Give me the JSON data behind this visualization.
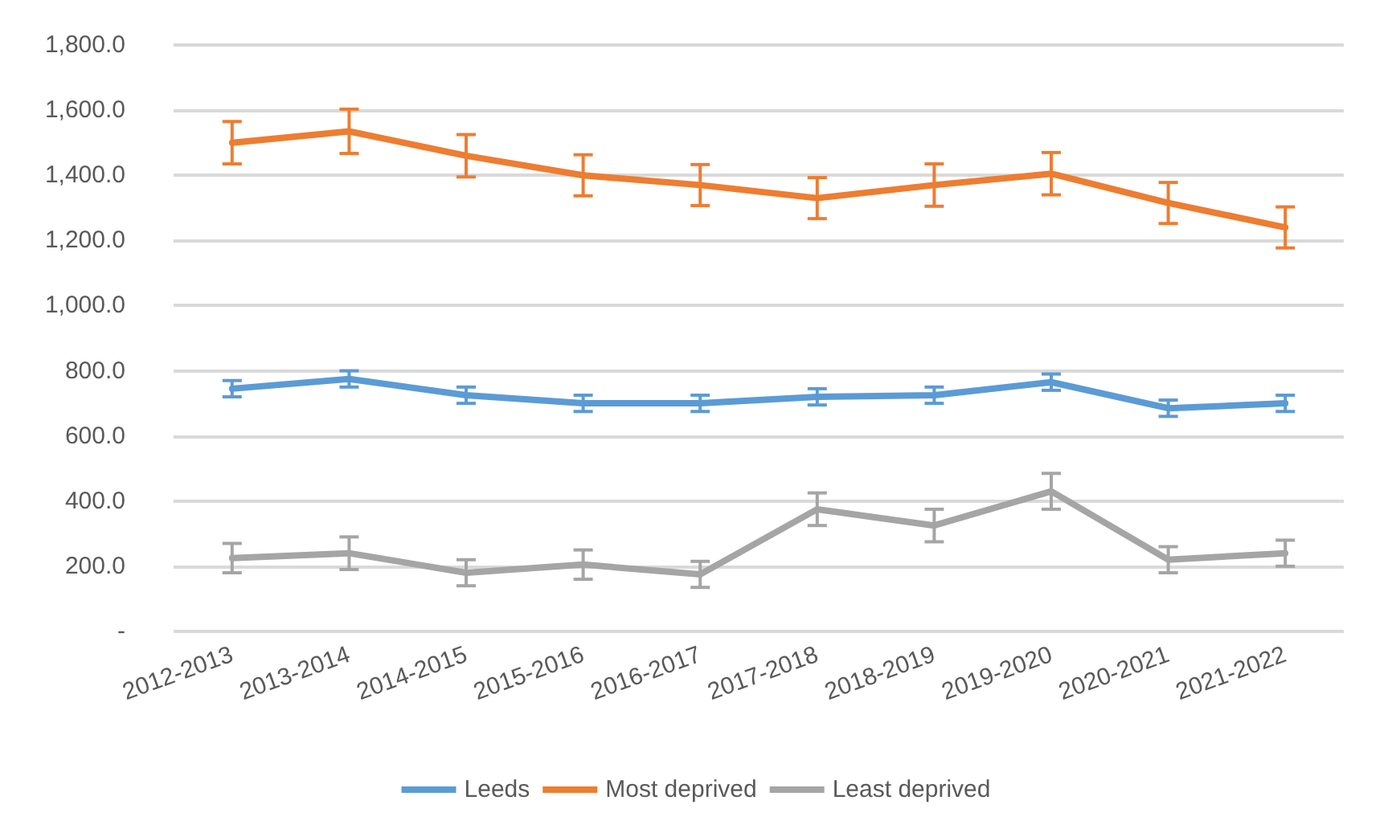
{
  "chart_data": {
    "type": "line",
    "categories": [
      "2012-2013",
      "2013-2014",
      "2014-2015",
      "2015-2016",
      "2016-2017",
      "2017-2018",
      "2018-2019",
      "2019-2020",
      "2020-2021",
      "2021-2022"
    ],
    "series": [
      {
        "name": "Leeds",
        "color": "#5b9bd5",
        "values": [
          745,
          775,
          725,
          700,
          700,
          720,
          725,
          765,
          685,
          700
        ],
        "errors": [
          25,
          25,
          25,
          25,
          25,
          25,
          25,
          25,
          25,
          25
        ]
      },
      {
        "name": "Most deprived",
        "color": "#ed7d31",
        "values": [
          1500,
          1535,
          1460,
          1400,
          1370,
          1330,
          1370,
          1405,
          1315,
          1240
        ],
        "errors": [
          65,
          68,
          65,
          63,
          63,
          63,
          65,
          65,
          63,
          63
        ]
      },
      {
        "name": "Least deprived",
        "color": "#a5a5a5",
        "values": [
          225,
          240,
          180,
          205,
          175,
          375,
          325,
          430,
          220,
          240
        ],
        "errors": [
          45,
          50,
          40,
          45,
          40,
          50,
          50,
          55,
          40,
          40
        ]
      }
    ],
    "ylim": [
      0,
      1800
    ],
    "yticks": [
      {
        "value": 0,
        "label": "-"
      },
      {
        "value": 200,
        "label": "200.0"
      },
      {
        "value": 400,
        "label": "400.0"
      },
      {
        "value": 600,
        "label": "600.0"
      },
      {
        "value": 800,
        "label": "800.0"
      },
      {
        "value": 1000,
        "label": "1,000.0"
      },
      {
        "value": 1200,
        "label": "1,200.0"
      },
      {
        "value": 1400,
        "label": "1,400.0"
      },
      {
        "value": 1600,
        "label": "1,600.0"
      },
      {
        "value": 1800,
        "label": "1,800.0"
      }
    ],
    "grid": "y",
    "legend": "bottom",
    "marker": "none",
    "line_style": "solid"
  }
}
